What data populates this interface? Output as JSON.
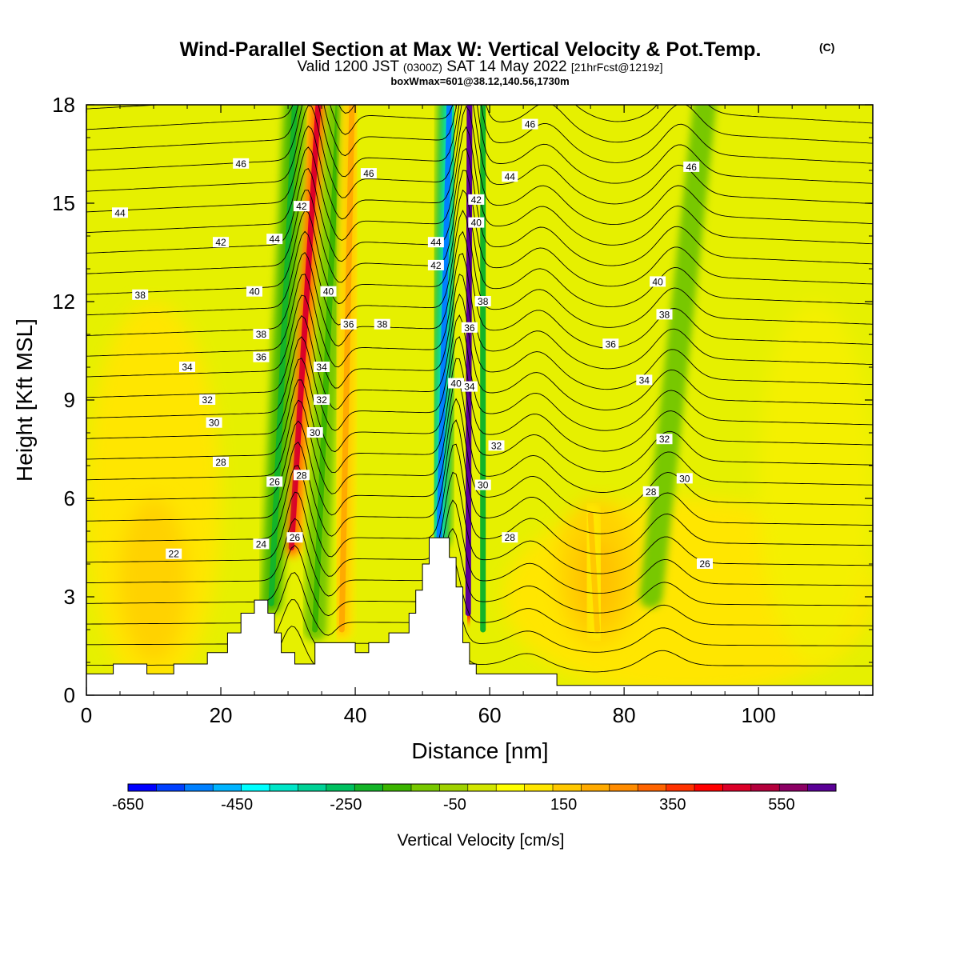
{
  "chart_data": {
    "type": "heatmap",
    "title": "Wind-Parallel Section at Max W: Vertical Velocity & Pot.Temp.",
    "title_mark": "(C)",
    "subtitle_main": "Valid 1200 JST",
    "subtitle_utc": "(0300Z)",
    "subtitle_date": "SAT 14 May 2022",
    "subtitle_fcst": "[21hrFcst@1219z]",
    "subtitle2": "boxWmax=601@38.12,140.56,1730m",
    "xlabel": "Distance [nm]",
    "ylabel": "Height [Kft MSL]",
    "xlim": [
      0,
      117
    ],
    "ylim": [
      0,
      18
    ],
    "x_ticks": [
      "0",
      "20",
      "40",
      "60",
      "80",
      "100"
    ],
    "y_ticks": [
      "0",
      "3",
      "6",
      "9",
      "12",
      "15",
      "18"
    ],
    "x_tick_values": [
      0,
      20,
      40,
      60,
      80,
      100
    ],
    "y_tick_values": [
      0,
      3,
      6,
      9,
      12,
      15,
      18
    ],
    "colorbar": {
      "label": "Vertical Velocity [cm/s]",
      "tick_labels": [
        "-650",
        "-450",
        "-250",
        "-50",
        "150",
        "350",
        "550"
      ],
      "tick_values": [
        -650,
        -450,
        -250,
        -50,
        150,
        350,
        550
      ],
      "range": [
        -650,
        650
      ],
      "colors": [
        "#0000ff",
        "#0040ff",
        "#0080ff",
        "#00b4ff",
        "#00ffff",
        "#00e6c8",
        "#00d296",
        "#00c060",
        "#14b428",
        "#3cb400",
        "#78c800",
        "#a0d200",
        "#d2e600",
        "#ffff00",
        "#ffe600",
        "#ffc800",
        "#ffaa00",
        "#ff8c00",
        "#ff6400",
        "#ff3200",
        "#ff0000",
        "#dc0028",
        "#b4003c",
        "#8c0064",
        "#5a0096"
      ]
    },
    "terrain": [
      [
        0,
        0.65
      ],
      [
        4,
        0.65
      ],
      [
        4,
        0.95
      ],
      [
        9,
        0.95
      ],
      [
        9,
        0.65
      ],
      [
        13,
        0.65
      ],
      [
        13,
        0.95
      ],
      [
        18,
        0.95
      ],
      [
        18,
        1.3
      ],
      [
        21,
        1.3
      ],
      [
        21,
        1.9
      ],
      [
        23,
        1.9
      ],
      [
        23,
        2.5
      ],
      [
        25,
        2.5
      ],
      [
        25,
        2.9
      ],
      [
        27,
        2.9
      ],
      [
        27,
        2.5
      ],
      [
        28,
        2.5
      ],
      [
        28,
        1.9
      ],
      [
        29,
        1.9
      ],
      [
        29,
        1.3
      ],
      [
        31,
        1.3
      ],
      [
        31,
        0.95
      ],
      [
        34,
        0.95
      ],
      [
        34,
        1.6
      ],
      [
        40,
        1.6
      ],
      [
        40,
        1.3
      ],
      [
        42,
        1.3
      ],
      [
        42,
        1.6
      ],
      [
        45,
        1.6
      ],
      [
        45,
        1.9
      ],
      [
        48,
        1.9
      ],
      [
        48,
        2.5
      ],
      [
        49,
        2.5
      ],
      [
        49,
        3.2
      ],
      [
        50,
        3.2
      ],
      [
        50,
        4.0
      ],
      [
        51,
        4.0
      ],
      [
        51,
        4.8
      ],
      [
        54,
        4.8
      ],
      [
        54,
        4.2
      ],
      [
        55,
        4.2
      ],
      [
        55,
        3.3
      ],
      [
        56,
        3.3
      ],
      [
        56,
        1.6
      ],
      [
        57,
        1.6
      ],
      [
        57,
        0.95
      ],
      [
        58,
        0.95
      ],
      [
        58,
        0.65
      ],
      [
        70,
        0.65
      ],
      [
        70,
        0.3
      ],
      [
        117,
        0.3
      ]
    ],
    "w_bands": [
      {
        "name": "updraft-1",
        "x_bottom": 30.5,
        "y_bottom": 4.5,
        "x_top": 34.5,
        "y_top": 18,
        "value": 450
      },
      {
        "name": "downdraft-1",
        "x_bottom": 27.5,
        "y_bottom": 2.8,
        "x_top": 31,
        "y_top": 18,
        "value": -200
      },
      {
        "name": "downdraft-2",
        "x_bottom": 34,
        "y_bottom": 2.0,
        "x_top": 37.5,
        "y_top": 18,
        "value": -150
      },
      {
        "name": "updraft-2",
        "x_bottom": 38,
        "y_bottom": 2.0,
        "x_top": 39.5,
        "y_top": 18,
        "value": 200
      },
      {
        "name": "downdraft-3",
        "x_bottom": 52.5,
        "y_bottom": 4.8,
        "x_top": 54,
        "y_top": 18,
        "value": -500
      },
      {
        "name": "updraft-3",
        "x_bottom": 56.8,
        "y_bottom": 2.5,
        "x_top": 57,
        "y_top": 18,
        "value": 601
      },
      {
        "name": "downdraft-4",
        "x_bottom": 59,
        "y_bottom": 2.0,
        "x_top": 59,
        "y_top": 18,
        "value": -200
      },
      {
        "name": "downdraft-5",
        "x_bottom": 84,
        "y_bottom": 3.0,
        "x_top": 92,
        "y_top": 18,
        "value": -120
      },
      {
        "name": "updraft-4",
        "x_bottom": 76,
        "y_bottom": 2.0,
        "x_top": 75,
        "y_top": 5.5,
        "value": 150
      }
    ],
    "theta_contour_labels": [
      "22",
      "24",
      "26",
      "26",
      "26",
      "28",
      "28",
      "28",
      "28",
      "30",
      "30",
      "30",
      "30",
      "32",
      "32",
      "32",
      "32",
      "34",
      "34",
      "34",
      "34",
      "36",
      "36",
      "36",
      "36",
      "38",
      "38",
      "38",
      "38",
      "38",
      "40",
      "40",
      "40",
      "40",
      "40",
      "42",
      "42",
      "42",
      "42",
      "44",
      "44",
      "44",
      "44",
      "46",
      "46",
      "46",
      "46"
    ],
    "theta_contour_label_pos": [
      [
        13,
        4.3
      ],
      [
        26,
        4.6
      ],
      [
        31,
        4.8
      ],
      [
        28,
        6.5
      ],
      [
        92,
        4.0
      ],
      [
        20,
        7.1
      ],
      [
        32,
        6.7
      ],
      [
        63,
        4.8
      ],
      [
        84,
        6.2
      ],
      [
        19,
        8.3
      ],
      [
        34,
        8.0
      ],
      [
        59,
        6.4
      ],
      [
        89,
        6.6
      ],
      [
        18,
        9.0
      ],
      [
        35,
        9.0
      ],
      [
        61,
        7.6
      ],
      [
        86,
        7.8
      ],
      [
        15,
        10.0
      ],
      [
        35,
        10.0
      ],
      [
        57,
        9.4
      ],
      [
        83,
        9.6
      ],
      [
        26,
        10.3
      ],
      [
        39,
        11.3
      ],
      [
        57,
        11.2
      ],
      [
        78,
        10.7
      ],
      [
        8,
        12.2
      ],
      [
        26,
        11.0
      ],
      [
        44,
        11.3
      ],
      [
        59,
        12.0
      ],
      [
        86,
        11.6
      ],
      [
        25,
        12.3
      ],
      [
        36,
        12.3
      ],
      [
        55,
        9.5
      ],
      [
        58,
        14.4
      ],
      [
        85,
        12.6
      ],
      [
        20,
        13.8
      ],
      [
        32,
        14.9
      ],
      [
        52,
        13.1
      ],
      [
        58,
        15.1
      ],
      [
        5,
        14.7
      ],
      [
        28,
        13.9
      ],
      [
        52,
        13.8
      ],
      [
        63,
        15.8
      ],
      [
        23,
        16.2
      ],
      [
        42,
        15.9
      ],
      [
        66,
        17.4
      ],
      [
        90,
        16.1
      ]
    ]
  }
}
